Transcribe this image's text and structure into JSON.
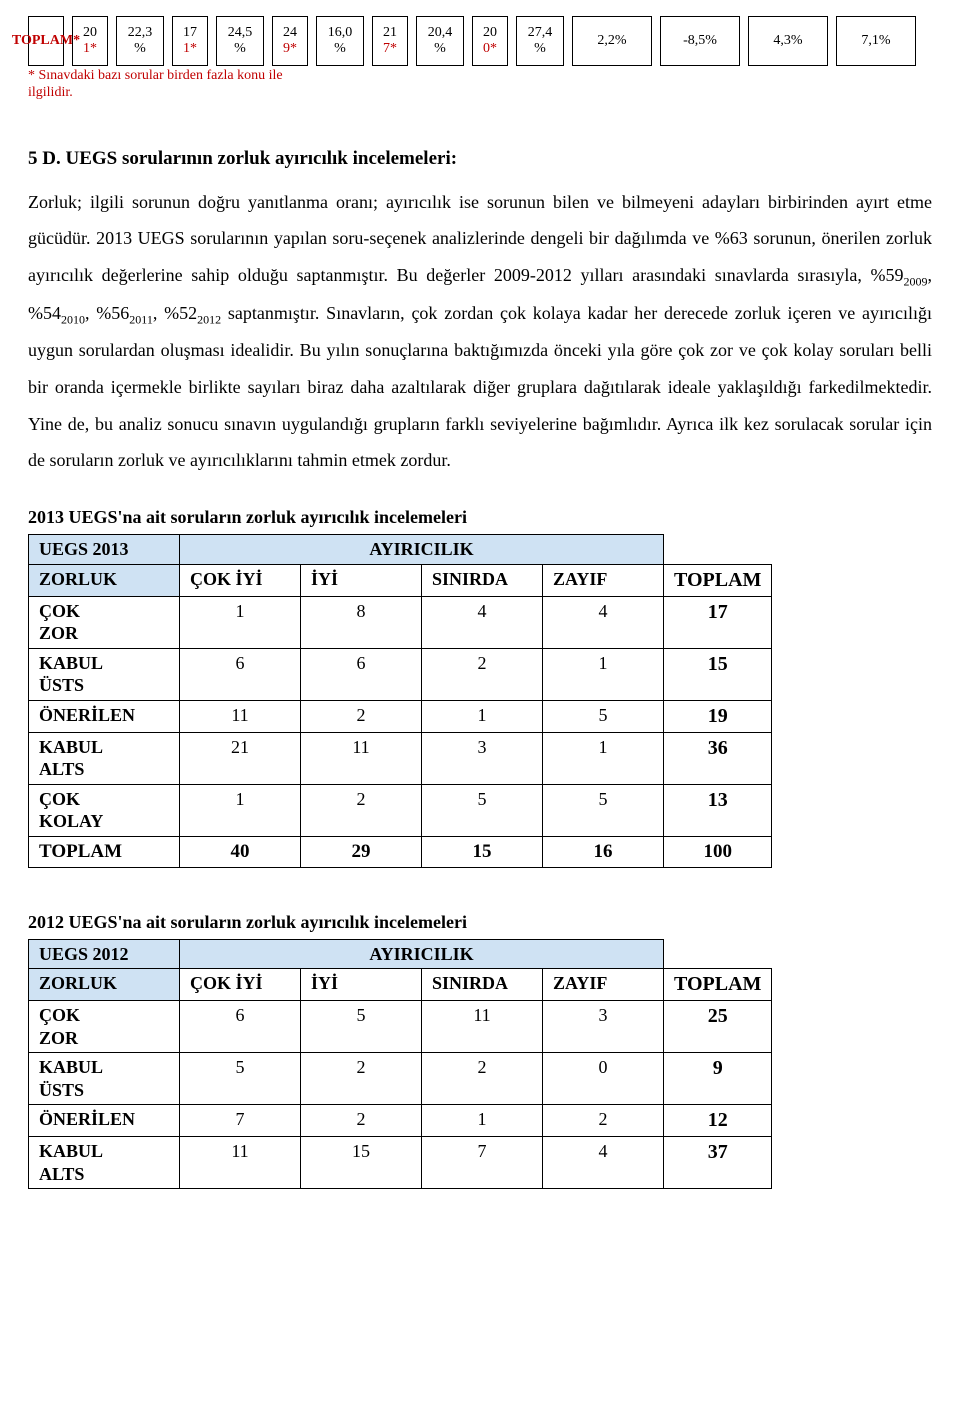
{
  "topRow": {
    "label": "TOPLAM*",
    "pairs": [
      {
        "a": "20",
        "a2": "1*",
        "b": "22,3",
        "b2": "%"
      },
      {
        "a": "17",
        "a2": "1*",
        "b": "24,5",
        "b2": "%"
      },
      {
        "a": "24",
        "a2": "9*",
        "b": "16,0",
        "b2": "%"
      },
      {
        "a": "21",
        "a2": "7*",
        "b": "20,4",
        "b2": "%"
      },
      {
        "a": "20",
        "a2": "0*",
        "b": "27,4",
        "b2": "%"
      }
    ],
    "tail": [
      "2,2%",
      "-8,5%",
      "4,3%",
      "7,1%"
    ],
    "footnote": "* Sınavdaki bazı sorular birden fazla konu ile ilgilidir."
  },
  "section": {
    "heading": "5 D. UEGS sorularının zorluk ayırıcılık incelemeleri:",
    "paragraph_html": "Zorluk; ilgili sorunun doğru yanıtlanma oranı; ayırıcılık ise sorunun bilen ve bilmeyeni adayları birbirinden ayırt etme gücüdür. 2013 UEGS sorularının yapılan soru-seçenek analizlerinde dengeli bir dağılımda ve %63 sorunun, önerilen zorluk ayırıcılık değerlerine sahip olduğu saptanmıştır. Bu değerler 2009-2012 yılları arasındaki sınavlarda sırasıyla, %59<sub>2009</sub>, %54<sub>2010</sub>, %56<sub>2011</sub>, %52<sub>2012</sub> saptanmıştır. Sınavların, çok zordan çok kolaya kadar her derecede zorluk içeren ve ayırıcılığı uygun sorulardan oluşması idealidir. Bu yılın sonuçlarına baktığımızda önceki yıla göre çok zor ve çok kolay soruları belli bir oranda içermekle birlikte sayıları biraz daha azaltılarak diğer gruplara dağıtılarak ideale yaklaşıldığı farkedilmektedir. Yine de, bu analiz sonucu sınavın uygulandığı grupların farklı seviyelerine bağımlıdır. Ayrıca ilk kez sorulacak sorular için de soruların zorluk ve ayırıcılıklarını tahmin etmek zordur."
  },
  "table2013": {
    "title": "2013 UEGS'na ait soruların zorluk ayırıcılık incelemeleri",
    "corner": "UEGS 2013",
    "colGroupLabel": "AYIRICILIK",
    "rowGroupLabel": "ZORLUK",
    "cols": [
      "ÇOK İYİ",
      "İYİ",
      "SINIRDA",
      "ZAYIF"
    ],
    "totalLabel": "TOPLAM",
    "rows": [
      {
        "label": "ÇOK ZOR",
        "vals": [
          "1",
          "8",
          "4",
          "4"
        ],
        "total": "17"
      },
      {
        "label": "KABUL ÜSTS",
        "vals": [
          "6",
          "6",
          "2",
          "1"
        ],
        "total": "15"
      },
      {
        "label": "ÖNERİLEN",
        "vals": [
          "11",
          "2",
          "1",
          "5"
        ],
        "total": "19"
      },
      {
        "label": "KABUL ALTS",
        "vals": [
          "21",
          "11",
          "3",
          "1"
        ],
        "total": "36"
      },
      {
        "label": "ÇOK KOLAY",
        "vals": [
          "1",
          "2",
          "5",
          "5"
        ],
        "total": "13"
      }
    ],
    "totals": {
      "label": "TOPLAM",
      "vals": [
        "40",
        "29",
        "15",
        "16"
      ],
      "grand": "100"
    }
  },
  "table2012": {
    "title": "2012 UEGS'na ait soruların zorluk ayırıcılık incelemeleri",
    "corner": "UEGS 2012",
    "colGroupLabel": "AYIRICILIK",
    "rowGroupLabel": "ZORLUK",
    "cols": [
      "ÇOK İYİ",
      "İYİ",
      "SINIRDA",
      "ZAYIF"
    ],
    "totalLabel": "TOPLAM",
    "rows": [
      {
        "label": "ÇOK ZOR",
        "vals": [
          "6",
          "5",
          "11",
          "3"
        ],
        "total": "25"
      },
      {
        "label": "KABUL ÜSTS",
        "vals": [
          "5",
          "2",
          "2",
          "0"
        ],
        "total": "9"
      },
      {
        "label": "ÖNERİLEN",
        "vals": [
          "7",
          "2",
          "1",
          "2"
        ],
        "total": "12"
      },
      {
        "label": "KABUL ALTS",
        "vals": [
          "11",
          "15",
          "7",
          "4"
        ],
        "total": "37"
      }
    ]
  }
}
